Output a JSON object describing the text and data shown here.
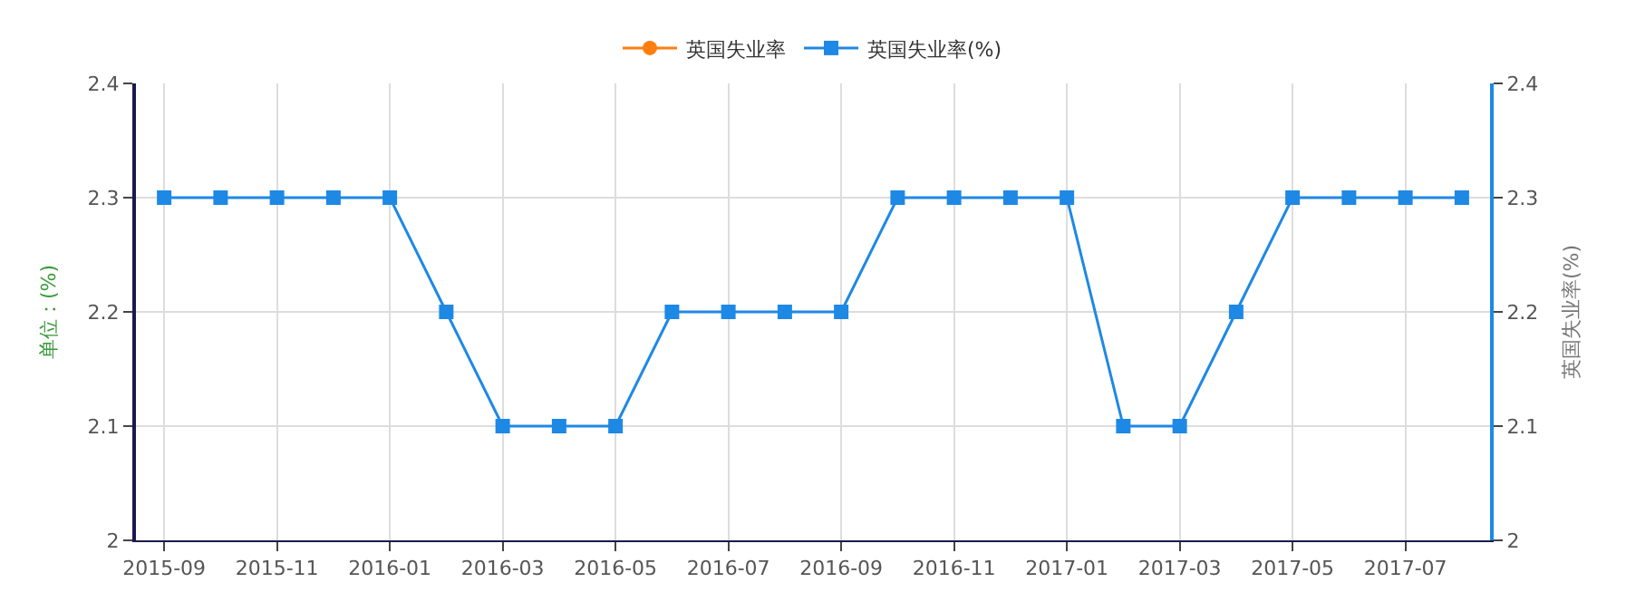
{
  "chart_data": {
    "type": "line",
    "categories": [
      "2015-09",
      null,
      "2015-11",
      null,
      "2016-01",
      null,
      "2016-03",
      null,
      "2016-05",
      null,
      "2016-07",
      null,
      "2016-09",
      null,
      "2016-11",
      null,
      "2017-01",
      null,
      "2017-03",
      null,
      "2017-05",
      null,
      "2017-07",
      null
    ],
    "series": [
      {
        "name": "英国失业率",
        "color": "#ff7f0e",
        "marker": "circle",
        "values": [
          null,
          null,
          null,
          null,
          null,
          null,
          null,
          null,
          null,
          null,
          null,
          null,
          null,
          null,
          null,
          null,
          null,
          null,
          null,
          null,
          null,
          null,
          null,
          null
        ]
      },
      {
        "name": "英国失业率(%)",
        "color": "#1e88e5",
        "marker": "square",
        "axis": "y2",
        "values": [
          2.3,
          2.3,
          2.3,
          2.3,
          2.3,
          2.2,
          2.1,
          2.1,
          2.1,
          2.2,
          2.2,
          2.2,
          2.2,
          2.3,
          2.3,
          2.3,
          2.3,
          2.1,
          2.1,
          2.2,
          2.3,
          2.3,
          2.3,
          2.3
        ]
      }
    ],
    "ylabel": "单位：(%)",
    "y2label": "英国失业率(%)",
    "ylim": [
      2,
      2.4
    ],
    "yticks": [
      2,
      2.1,
      2.2,
      2.3,
      2.4
    ],
    "y2lim": [
      2,
      2.4
    ],
    "y2ticks": [
      2,
      2.1,
      2.2,
      2.3,
      2.4
    ],
    "grid": true,
    "legend": "top",
    "line_style": "solid"
  }
}
